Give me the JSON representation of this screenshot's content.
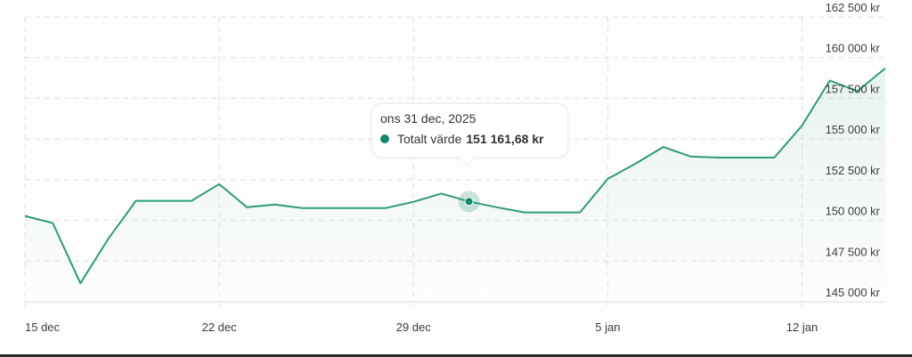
{
  "chart_data": {
    "type": "area",
    "title": "",
    "xlabel": "",
    "ylabel": "",
    "series": [
      {
        "name": "Totalt värde",
        "color": "#2e9a7e",
        "values": [
          150270,
          149840,
          146140,
          148860,
          151200,
          151200,
          151200,
          152230,
          150810,
          150980,
          150760,
          150760,
          150760,
          150760,
          151140,
          151650,
          151161.68,
          150810,
          150490,
          150490,
          150490,
          152550,
          153480,
          154510,
          153920,
          153860,
          153860,
          153860,
          155820,
          158590,
          157940,
          159350
        ]
      }
    ],
    "x_tick_labels": [
      "15 dec",
      "22 dec",
      "29 dec",
      "5 jan",
      "12 jan"
    ],
    "x_tick_index": [
      0,
      7,
      14,
      21,
      28
    ],
    "y_tick_labels": [
      "145 000 kr",
      "147 500 kr",
      "150 000 kr",
      "152 500 kr",
      "155 000 kr",
      "157 500 kr",
      "160 000 kr",
      "162 500 kr"
    ],
    "y_ticks": [
      145000,
      147500,
      150000,
      152500,
      155000,
      157500,
      160000,
      162500
    ],
    "ylim": [
      145000,
      162500
    ],
    "grid": true,
    "legend": "none",
    "highlight_index": 16
  },
  "tooltip": {
    "date": "ons 31 dec, 2025",
    "series_label": "Totalt värde",
    "value": "151 161,68 kr"
  }
}
